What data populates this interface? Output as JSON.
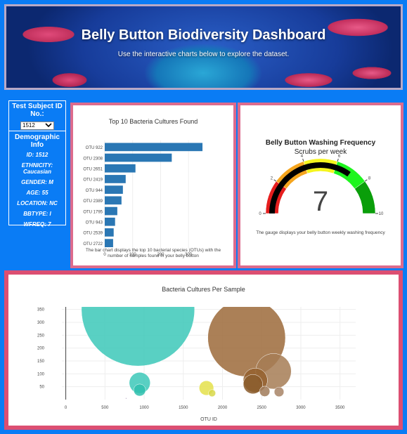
{
  "header": {
    "title": "Belly Button Biodiversity Dashboard",
    "subtitle": "Use the interactive charts below to explore the dataset."
  },
  "selector": {
    "label": "Test Subject ID No.:",
    "value": "1512"
  },
  "demographic": {
    "title": "Demographic Info",
    "rows": [
      "ID: 1512",
      "ETHNICITY: Caucasian",
      "GENDER: M",
      "AGE: 55",
      "LOCATION: NC",
      "BBTYPE: I",
      "WFREQ: 7"
    ]
  },
  "colors": {
    "bar": "#2a77b4",
    "bubble_teal": "#3cc8b8",
    "bubble_brown": "#9c6a3a",
    "bubble_yellow": "#e4e14a",
    "gauge_needle": "#000000"
  },
  "bar_chart_data": {
    "type": "bar",
    "orientation": "horizontal",
    "title": "Top 10 Bacteria Cultures Found",
    "categories": [
      "OTU 922",
      "OTU 2308",
      "OTU 2651",
      "OTU 2419",
      "OTU 944",
      "OTU 2389",
      "OTU 1795",
      "OTU 943",
      "OTU 2539",
      "OTU 2722"
    ],
    "values": [
      350,
      240,
      110,
      75,
      65,
      60,
      45,
      37,
      32,
      30
    ],
    "xticks": [
      "0",
      "100",
      "200",
      "300"
    ],
    "xlim": [
      0,
      370
    ],
    "caption": "The bar chart displays the top 10 bacterial species (OTUs) with the number of samples found in your belly button"
  },
  "gauge_data": {
    "type": "gauge",
    "title": "Belly Button Washing Frequency",
    "subtitle": "Scrubs per week",
    "value": 7,
    "value_label": "7",
    "range": [
      0,
      10
    ],
    "ticks": [
      "0",
      "2",
      "4",
      "6",
      "8",
      "10"
    ],
    "bands": [
      {
        "from": 0,
        "to": 2,
        "color": "#e61e1e"
      },
      {
        "from": 2,
        "to": 4,
        "color": "#f5a51e"
      },
      {
        "from": 4,
        "to": 6,
        "color": "#f5f51e"
      },
      {
        "from": 6,
        "to": 8,
        "color": "#1ef51e"
      },
      {
        "from": 8,
        "to": 10,
        "color": "#0a9e0a"
      }
    ],
    "caption": "The gauge displays your belly button weekly washing frequency"
  },
  "chart_data": {
    "type": "scatter",
    "title": "Bacteria Cultures Per Sample",
    "xlabel": "OTU ID",
    "ylabel": "",
    "xlim": [
      -50,
      3700
    ],
    "ylim": [
      0,
      360
    ],
    "xticks": [
      "0",
      "500",
      "1000",
      "1500",
      "2000",
      "2500",
      "3000",
      "3500"
    ],
    "yticks": [
      "50",
      "100",
      "150",
      "200",
      "250",
      "300",
      "350"
    ],
    "points": [
      {
        "x": 922,
        "y": 350,
        "size": 350,
        "color": "#3cc8b8"
      },
      {
        "x": 2308,
        "y": 240,
        "size": 240,
        "color": "#9c6a3a"
      },
      {
        "x": 2651,
        "y": 110,
        "size": 110,
        "color": "#a67c55"
      },
      {
        "x": 2419,
        "y": 75,
        "size": 75,
        "color": "#94602e"
      },
      {
        "x": 944,
        "y": 65,
        "size": 65,
        "color": "#3cc8b8"
      },
      {
        "x": 2389,
        "y": 60,
        "size": 60,
        "color": "#8a5a2a"
      },
      {
        "x": 1795,
        "y": 45,
        "size": 45,
        "color": "#e4e14a"
      },
      {
        "x": 943,
        "y": 37,
        "size": 37,
        "color": "#2fbfae"
      },
      {
        "x": 2539,
        "y": 32,
        "size": 32,
        "color": "#a07a58"
      },
      {
        "x": 2722,
        "y": 30,
        "size": 30,
        "color": "#a88466"
      },
      {
        "x": 1867,
        "y": 25,
        "size": 22,
        "color": "#d8d84a"
      },
      {
        "x": 770,
        "y": 5,
        "size": 3,
        "color": "#6a4a8a"
      }
    ]
  }
}
